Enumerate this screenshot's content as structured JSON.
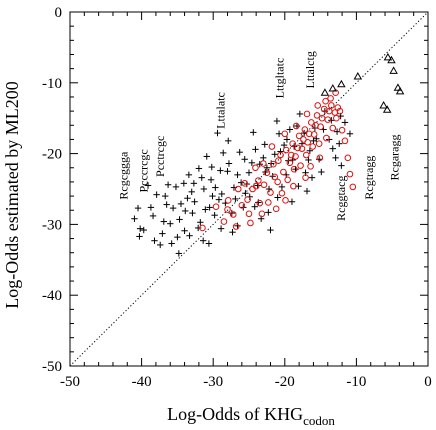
{
  "chart_data": {
    "type": "scatter",
    "xlabel": "Log-Odds of KHG",
    "xlabel_subscript": "codon",
    "ylabel": "Log-Odds estimated by ML200",
    "xlim": [
      -50,
      0
    ],
    "ylim": [
      -50,
      0
    ],
    "xticks": [
      -50,
      -40,
      -30,
      -20,
      -10,
      0
    ],
    "yticks": [
      -50,
      -40,
      -30,
      -20,
      -10,
      0
    ],
    "xtick_labels": [
      "-50",
      "-40",
      "-30",
      "-20",
      "-10",
      "0"
    ],
    "ytick_labels": [
      "-50",
      "-40",
      "-30",
      "-20",
      "-10",
      "0"
    ],
    "reference_line": {
      "style": "dotted",
      "from": [
        -50,
        -50
      ],
      "to": [
        0,
        0
      ],
      "color": "#000000"
    },
    "colors": {
      "plus": "#000000",
      "circle": "#e01010",
      "triangle": "#000000"
    },
    "annotations": [
      {
        "text": "Rcgcggga",
        "x": -42.0,
        "y": -26.5
      },
      {
        "text": "Pcccrcgc",
        "x": -39.2,
        "y": -25.5
      },
      {
        "text": "Pcctrcgc",
        "x": -36.9,
        "y": -23.3
      },
      {
        "text": "Lttalatc",
        "x": -28.4,
        "y": -16.5
      },
      {
        "text": "Lttgltatc",
        "x": -20.2,
        "y": -12.2
      },
      {
        "text": "Lttalctg",
        "x": -15.9,
        "y": -10.8
      },
      {
        "text": "Rcggtacg",
        "x": -11.6,
        "y": -29.5
      },
      {
        "text": "Rcgtragg",
        "x": -7.7,
        "y": -26.5
      },
      {
        "text": "Rcgaragg",
        "x": -4.1,
        "y": -23.8
      }
    ],
    "series": [
      {
        "marker": "plus",
        "points": [
          [
            -40.3,
            -31.7
          ],
          [
            -40.2,
            -30.6
          ],
          [
            -40.5,
            -27.7
          ],
          [
            -39.7,
            -30.8
          ],
          [
            -37.1,
            -31.3
          ],
          [
            -36.9,
            -29.6
          ],
          [
            -38.2,
            -32.3
          ],
          [
            -37.4,
            -32.9
          ],
          [
            -35.8,
            -32.7
          ],
          [
            -35.0,
            -31.8
          ],
          [
            -36.5,
            -27.2
          ],
          [
            -38.7,
            -27.6
          ],
          [
            -36.0,
            -29.9
          ],
          [
            -34.8,
            -34.1
          ],
          [
            -34.0,
            -30.9
          ],
          [
            -33.3,
            -31.6
          ],
          [
            -32.9,
            -28.4
          ],
          [
            -35.6,
            -27.7
          ],
          [
            -34.5,
            -27.1
          ],
          [
            -33.6,
            -26.3
          ],
          [
            -36.3,
            -24.4
          ],
          [
            -34.1,
            -24.2
          ],
          [
            -31.8,
            -29.7
          ],
          [
            -31.4,
            -32.3
          ],
          [
            -30.6,
            -32.7
          ],
          [
            -30.5,
            -27.6
          ],
          [
            -31.6,
            -23.4
          ],
          [
            -32.0,
            -22.1
          ],
          [
            -33.4,
            -23.0
          ],
          [
            -32.7,
            -24.2
          ],
          [
            -30.2,
            -21.9
          ],
          [
            -29.7,
            -24.8
          ],
          [
            -28.8,
            -25.7
          ],
          [
            -29.0,
            -22.4
          ],
          [
            -27.8,
            -21.4
          ],
          [
            -28.3,
            -27.0
          ],
          [
            -27.4,
            -28.4
          ],
          [
            -26.6,
            -30.2
          ],
          [
            -27.3,
            -31.1
          ],
          [
            -28.9,
            -30.6
          ],
          [
            -26.1,
            -24.1
          ],
          [
            -25.6,
            -20.8
          ],
          [
            -25.0,
            -22.7
          ],
          [
            -24.9,
            -26.1
          ],
          [
            -24.2,
            -27.5
          ],
          [
            -23.8,
            -24.5
          ],
          [
            -23.5,
            -21.5
          ],
          [
            -24.1,
            -19.4
          ],
          [
            -22.8,
            -18.7
          ],
          [
            -22.7,
            -22.6
          ],
          [
            -22.2,
            -25.0
          ],
          [
            -21.7,
            -23.2
          ],
          [
            -21.4,
            -20.1
          ],
          [
            -20.8,
            -17.2
          ],
          [
            -20.1,
            -18.8
          ],
          [
            -19.5,
            -21.0
          ],
          [
            -19.8,
            -23.0
          ],
          [
            -18.7,
            -19.0
          ],
          [
            -18.3,
            -16.1
          ],
          [
            -17.6,
            -18.6
          ],
          [
            -17.1,
            -22.7
          ],
          [
            -16.5,
            -19.6
          ],
          [
            -15.8,
            -16.4
          ],
          [
            -15.2,
            -20.8
          ],
          [
            -13.8,
            -18.0
          ],
          [
            -12.9,
            -20.6
          ],
          [
            -12.1,
            -21.7
          ],
          [
            -12.7,
            -16.9
          ],
          [
            -14.4,
            -14.0
          ],
          [
            -11.6,
            -15.6
          ],
          [
            -29.4,
            -17.1
          ],
          [
            -26.6,
            -23.0
          ],
          [
            -33.0,
            -25.4
          ],
          [
            -35.2,
            -24.7
          ],
          [
            -31.3,
            -25.0
          ],
          [
            -30.1,
            -26.0
          ],
          [
            -29.8,
            -28.7
          ],
          [
            -26.9,
            -26.4
          ],
          [
            -25.3,
            -24.3
          ],
          [
            -26.3,
            -19.8
          ],
          [
            -23.0,
            -20.6
          ],
          [
            -22.3,
            -28.3
          ],
          [
            -21.0,
            -26.2
          ],
          [
            -20.4,
            -24.7
          ],
          [
            -19.0,
            -26.8
          ],
          [
            -18.1,
            -24.6
          ],
          [
            -16.9,
            -25.3
          ],
          [
            -16.2,
            -23.4
          ],
          [
            -17.9,
            -14.4
          ],
          [
            -19.3,
            -16.6
          ],
          [
            -21.1,
            -15.4
          ],
          [
            -24.4,
            -17.0
          ],
          [
            -27.9,
            -18.2
          ],
          [
            -28.6,
            -19.9
          ],
          [
            -30.9,
            -20.4
          ],
          [
            -37.9,
            -25.8
          ],
          [
            -39.1,
            -24.5
          ],
          [
            -38.4,
            -28.8
          ],
          [
            -41.0,
            -29.2
          ],
          [
            -32.1,
            -30.5
          ],
          [
            -25.8,
            -27.6
          ],
          [
            -23.3,
            -29.2
          ],
          [
            -22.0,
            -30.8
          ],
          [
            -28.0,
            -22.5
          ],
          [
            -27.1,
            -24.8
          ],
          [
            -24.6,
            -21.3
          ],
          [
            -20.6,
            -19.7
          ],
          [
            -18.9,
            -20.9
          ],
          [
            -17.3,
            -17.1
          ],
          [
            -15.6,
            -17.9
          ],
          [
            -14.9,
            -22.6
          ],
          [
            -13.3,
            -19.3
          ],
          [
            -12.4,
            -18.6
          ],
          [
            -10.9,
            -17.2
          ],
          [
            -36.7,
            -26.0
          ],
          [
            -34.7,
            -29.3
          ],
          [
            -33.9,
            -28.1
          ],
          [
            -31.1,
            -27.9
          ],
          [
            -29.2,
            -26.5
          ],
          [
            -25.5,
            -25.6
          ],
          [
            -23.7,
            -26.9
          ],
          [
            -22.5,
            -22.0
          ],
          [
            -21.9,
            -21.4
          ],
          [
            -19.7,
            -18.0
          ],
          [
            -18.5,
            -22.2
          ],
          [
            -16.7,
            -20.9
          ],
          [
            -16.0,
            -18.2
          ],
          [
            -14.6,
            -16.6
          ],
          [
            -13.5,
            -15.3
          ],
          [
            -12.2,
            -14.7
          ],
          [
            -30.3,
            -23.7
          ],
          [
            -32.6,
            -26.8
          ]
        ]
      },
      {
        "marker": "circle",
        "points": [
          [
            -31.5,
            -30.5
          ],
          [
            -28.5,
            -29.6
          ],
          [
            -27.2,
            -28.6
          ],
          [
            -26.0,
            -27.3
          ],
          [
            -25.2,
            -26.5
          ],
          [
            -24.5,
            -25.0
          ],
          [
            -23.7,
            -23.8
          ],
          [
            -23.2,
            -28.5
          ],
          [
            -22.5,
            -22.7
          ],
          [
            -22.0,
            -25.5
          ],
          [
            -21.6,
            -21.5
          ],
          [
            -21.0,
            -24.0
          ],
          [
            -20.6,
            -20.2
          ],
          [
            -20.2,
            -22.6
          ],
          [
            -19.8,
            -19.5
          ],
          [
            -19.3,
            -21.3
          ],
          [
            -18.9,
            -18.6
          ],
          [
            -18.5,
            -20.4
          ],
          [
            -18.0,
            -17.5
          ],
          [
            -17.6,
            -19.3
          ],
          [
            -17.2,
            -16.6
          ],
          [
            -16.8,
            -18.4
          ],
          [
            -16.3,
            -15.6
          ],
          [
            -15.9,
            -17.3
          ],
          [
            -15.5,
            -14.6
          ],
          [
            -15.0,
            -16.2
          ],
          [
            -14.5,
            -13.7
          ],
          [
            -14.0,
            -15.2
          ],
          [
            -13.5,
            -13.2
          ],
          [
            -13.0,
            -14.2
          ],
          [
            -12.6,
            -13.5
          ],
          [
            -12.0,
            -16.7
          ],
          [
            -11.6,
            -18.2
          ],
          [
            -11.2,
            -20.6
          ],
          [
            -10.9,
            -22.9
          ],
          [
            -10.5,
            -24.7
          ],
          [
            -24.8,
            -29.8
          ],
          [
            -23.5,
            -27.0
          ],
          [
            -22.9,
            -24.4
          ],
          [
            -22.3,
            -26.9
          ],
          [
            -21.4,
            -23.3
          ],
          [
            -20.9,
            -21.0
          ],
          [
            -20.4,
            -25.6
          ],
          [
            -19.6,
            -23.7
          ],
          [
            -19.1,
            -20.2
          ],
          [
            -18.7,
            -22.2
          ],
          [
            -18.2,
            -19.2
          ],
          [
            -17.8,
            -21.7
          ],
          [
            -17.4,
            -18.0
          ],
          [
            -17.0,
            -20.2
          ],
          [
            -16.6,
            -17.2
          ],
          [
            -16.1,
            -19.0
          ],
          [
            -15.7,
            -16.0
          ],
          [
            -15.2,
            -18.6
          ],
          [
            -14.8,
            -15.0
          ],
          [
            -14.2,
            -17.8
          ],
          [
            -13.8,
            -14.0
          ],
          [
            -13.3,
            -16.4
          ],
          [
            -12.8,
            -15.0
          ],
          [
            -12.3,
            -14.0
          ],
          [
            -29.6,
            -27.5
          ],
          [
            -27.9,
            -26.6
          ],
          [
            -26.5,
            -25.0
          ],
          [
            -25.6,
            -24.2
          ],
          [
            -24.1,
            -22.0
          ],
          [
            -23.0,
            -21.4
          ],
          [
            -21.8,
            -19.0
          ],
          [
            -20.0,
            -17.2
          ],
          [
            -18.4,
            -16.1
          ],
          [
            -16.9,
            -14.4
          ],
          [
            -15.4,
            -13.2
          ],
          [
            -14.3,
            -12.6
          ],
          [
            -13.6,
            -12.2
          ],
          [
            -12.9,
            -11.4
          ],
          [
            -19.9,
            -26.6
          ],
          [
            -21.2,
            -27.8
          ],
          [
            -18.8,
            -24.6
          ],
          [
            -17.1,
            -23.4
          ],
          [
            -16.4,
            -21.8
          ],
          [
            -15.1,
            -20.6
          ],
          [
            -28.0,
            -27.9
          ],
          [
            -26.8,
            -30.3
          ],
          [
            -25.0,
            -28.5
          ],
          [
            -24.0,
            -24.6
          ]
        ]
      },
      {
        "marker": "triangle",
        "points": [
          [
            -14.4,
            -11.4
          ],
          [
            -13.3,
            -10.8
          ],
          [
            -12.1,
            -10.2
          ],
          [
            -9.8,
            -9.1
          ],
          [
            -5.6,
            -6.4
          ],
          [
            -5.1,
            -6.8
          ],
          [
            -4.8,
            -8.3
          ],
          [
            -4.2,
            -10.7
          ],
          [
            -3.9,
            -11.2
          ],
          [
            -6.2,
            -13.2
          ],
          [
            -5.7,
            -13.8
          ]
        ]
      }
    ]
  }
}
